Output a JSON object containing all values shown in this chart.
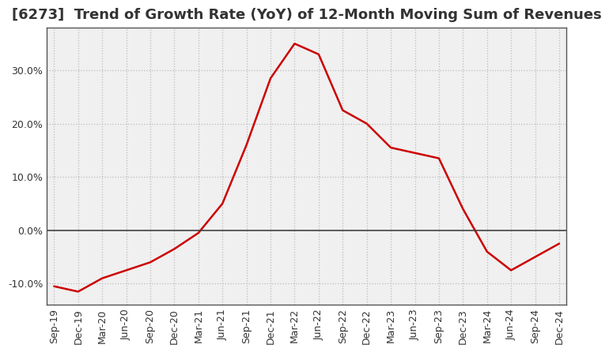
{
  "title": "[6273]  Trend of Growth Rate (YoY) of 12-Month Moving Sum of Revenues",
  "line_color": "#cc0000",
  "background_color": "#ffffff",
  "plot_bg_color": "#f0f0f0",
  "grid_color": "#bbbbbb",
  "spine_color": "#555555",
  "xlabels": [
    "Sep-19",
    "Dec-19",
    "Mar-20",
    "Jun-20",
    "Sep-20",
    "Dec-20",
    "Mar-21",
    "Jun-21",
    "Sep-21",
    "Dec-21",
    "Mar-22",
    "Jun-22",
    "Sep-22",
    "Dec-22",
    "Mar-23",
    "Jun-23",
    "Sep-23",
    "Dec-23",
    "Mar-24",
    "Jun-24",
    "Sep-24",
    "Dec-24"
  ],
  "yvalues": [
    -10.5,
    -11.5,
    -9.0,
    -7.5,
    -6.0,
    -3.5,
    -0.5,
    5.0,
    16.0,
    28.5,
    35.0,
    33.0,
    22.5,
    20.0,
    15.5,
    14.5,
    13.5,
    4.0,
    -4.0,
    -7.5,
    -5.0,
    -2.5
  ],
  "ylim": [
    -14,
    38
  ],
  "yticks": [
    -10.0,
    0.0,
    10.0,
    20.0,
    30.0
  ],
  "ytick_labels": [
    "-10.0%",
    "0.0%",
    "10.0%",
    "20.0%",
    "30.0%"
  ],
  "zero_line_color": "#444444",
  "title_fontsize": 13,
  "tick_fontsize": 9,
  "title_color": "#333333"
}
